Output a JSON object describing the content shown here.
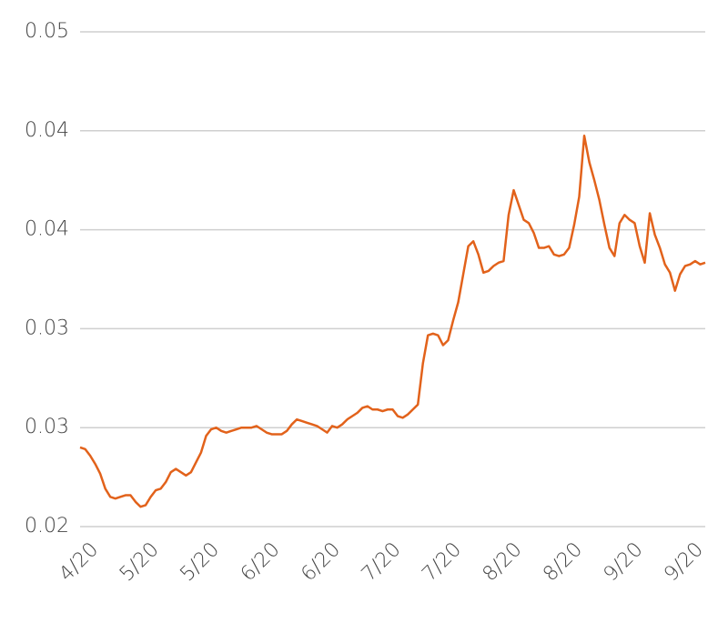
{
  "chart_data": {
    "type": "line",
    "categories": [
      null,
      null,
      null,
      "4/20",
      null,
      null,
      null,
      null,
      null,
      null,
      null,
      null,
      null,
      null,
      null,
      "5/20",
      null,
      null,
      null,
      null,
      null,
      null,
      null,
      null,
      null,
      null,
      null,
      "5/20",
      null,
      null,
      null,
      null,
      null,
      null,
      null,
      null,
      null,
      null,
      null,
      "6/20",
      null,
      null,
      null,
      null,
      null,
      null,
      null,
      null,
      null,
      null,
      null,
      "6/20",
      null,
      null,
      null,
      null,
      null,
      null,
      null,
      null,
      null,
      null,
      null,
      "7/20",
      null,
      null,
      null,
      null,
      null,
      null,
      null,
      null,
      null,
      null,
      null,
      "7/20",
      null,
      null,
      null,
      null,
      null,
      null,
      null,
      null,
      null,
      null,
      null,
      "8/20",
      null,
      null,
      null,
      null,
      null,
      null,
      null,
      null,
      null,
      null,
      null,
      "8/20",
      null,
      null,
      null,
      null,
      null,
      null,
      null,
      null,
      null,
      null,
      null,
      "9/20",
      null,
      null,
      null,
      null,
      null,
      null,
      null,
      null,
      null,
      null,
      null,
      "9/20",
      null
    ],
    "series": [
      {
        "color": "#e2621b",
        "values": [
          0.0248,
          0.0247,
          0.0243,
          0.0238,
          0.0232,
          0.0223,
          0.0218,
          0.0217,
          0.0218,
          0.0219,
          0.0219,
          0.0215,
          0.0212,
          0.0213,
          0.0218,
          0.0222,
          0.0223,
          0.0227,
          0.0233,
          0.0235,
          0.0233,
          0.0231,
          0.0233,
          0.0239,
          0.0245,
          0.0255,
          0.0259,
          0.026,
          0.0258,
          0.0257,
          0.0258,
          0.0259,
          0.026,
          0.026,
          0.026,
          0.0261,
          0.0259,
          0.0257,
          0.0256,
          0.0256,
          0.0256,
          0.0258,
          0.0262,
          0.0265,
          0.0264,
          0.0263,
          0.0262,
          0.0261,
          0.0259,
          0.0257,
          0.0261,
          0.026,
          0.0262,
          0.0265,
          0.0267,
          0.0269,
          0.0272,
          0.0273,
          0.0271,
          0.0271,
          0.027,
          0.0271,
          0.0271,
          0.0267,
          0.0266,
          0.0268,
          0.0271,
          0.0274,
          0.0299,
          0.0316,
          0.0317,
          0.0316,
          0.031,
          0.0313,
          0.0325,
          0.0336,
          0.0353,
          0.037,
          0.0373,
          0.0365,
          0.0354,
          0.0355,
          0.0358,
          0.036,
          0.0361,
          0.0389,
          0.0404,
          0.0395,
          0.0386,
          0.0384,
          0.0378,
          0.0369,
          0.0369,
          0.037,
          0.0365,
          0.0364,
          0.0365,
          0.0369,
          0.0383,
          0.04,
          0.0437,
          0.0421,
          0.041,
          0.0398,
          0.0383,
          0.0369,
          0.0364,
          0.0384,
          0.0389,
          0.0386,
          0.0384,
          0.037,
          0.036,
          0.039,
          0.0377,
          0.0369,
          0.0359,
          0.0354,
          0.0343,
          0.0353,
          0.0358,
          0.0359,
          0.0361,
          0.0359,
          0.036
        ]
      }
    ],
    "ylim": [
      0.02,
      0.05
    ],
    "yticks": [
      0.02,
      {
        "value": 0.026,
        "label": "0.03"
      },
      {
        "value": 0.032,
        "label": "0.03"
      },
      {
        "value": 0.038,
        "label": "0.04"
      },
      {
        "value": 0.044,
        "label": "0.04"
      },
      0.05
    ],
    "grid": true
  }
}
